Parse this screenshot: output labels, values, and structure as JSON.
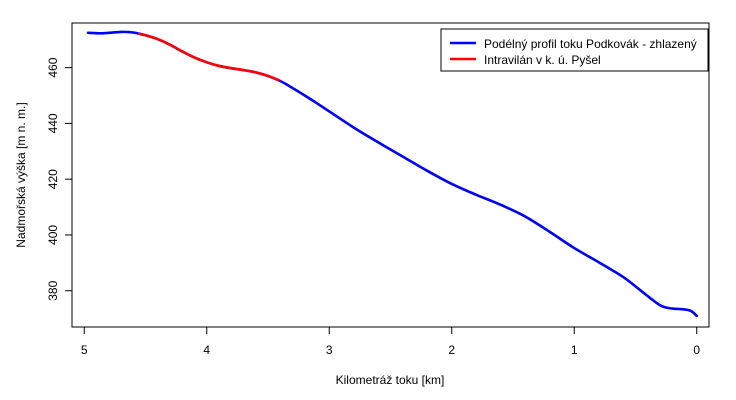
{
  "chart_data": {
    "type": "line",
    "xlabel": "Kilometráž toku [km]",
    "ylabel": "Nadmořská výška [m n. m.]",
    "xlim": [
      5.1,
      -0.1
    ],
    "ylim": [
      367,
      476
    ],
    "x_ticks": [
      5,
      4,
      3,
      2,
      1,
      0
    ],
    "y_ticks": [
      380,
      400,
      420,
      440,
      460
    ],
    "legend_position": "top-right",
    "series": [
      {
        "name": "Podélný profil toku Podkovák - zhlazený",
        "color": "#0000ff",
        "x": [
          4.97,
          4.85,
          4.7,
          4.6,
          4.5,
          4.4,
          4.3,
          4.2,
          4.1,
          4.0,
          3.9,
          3.8,
          3.7,
          3.6,
          3.5,
          3.4,
          3.3,
          3.2,
          3.1,
          3.0,
          2.8,
          2.6,
          2.4,
          2.2,
          2.0,
          1.8,
          1.6,
          1.4,
          1.2,
          1.0,
          0.8,
          0.6,
          0.45,
          0.3,
          0.2,
          0.12,
          0.05,
          0.0
        ],
        "y": [
          472.5,
          472.3,
          472.8,
          472.6,
          471.6,
          470.2,
          468.2,
          465.8,
          463.6,
          461.9,
          460.6,
          459.8,
          459.1,
          458.3,
          457.0,
          455.2,
          452.7,
          450.0,
          447.2,
          444.3,
          438.5,
          433.2,
          428.1,
          423.0,
          418.3,
          414.4,
          410.8,
          406.6,
          401.1,
          395.3,
          390.2,
          384.9,
          379.8,
          374.8,
          373.6,
          373.4,
          372.8,
          371.0
        ]
      },
      {
        "name": "Intravilán v k. ú. Pyšel",
        "color": "#ff0000",
        "x": [
          4.55,
          4.5,
          4.4,
          4.3,
          4.2,
          4.1,
          4.0,
          3.9,
          3.8,
          3.7,
          3.6,
          3.5,
          3.42
        ],
        "y": [
          472.1,
          471.6,
          470.2,
          468.2,
          465.8,
          463.6,
          461.9,
          460.6,
          459.8,
          459.1,
          458.3,
          457.0,
          455.6
        ]
      }
    ]
  }
}
